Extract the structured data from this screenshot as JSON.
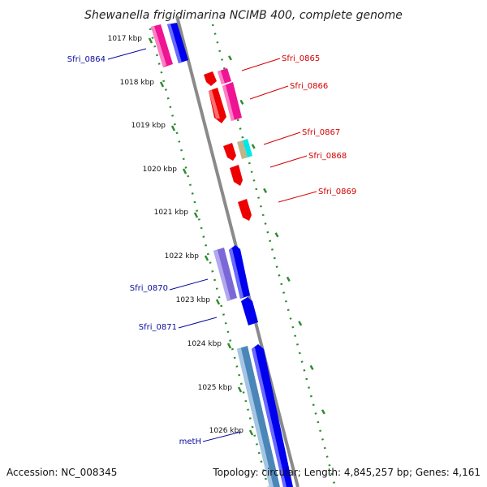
{
  "title": "Shewanella frigidimarina NCIMB 400, complete genome",
  "footer": {
    "accession": "Accession: NC_008345",
    "summary": "Topology: circular; Length: 4,845,257 bp; Genes: 4,161"
  },
  "colors": {
    "backbone": "#8a8a8a",
    "tick_dot": "#2e8b2e",
    "label_blue": "#0a0aa0",
    "label_red": "#d40000",
    "gene_blue": "#0000ee",
    "gene_red": "#ee0000",
    "gene_magenta": "#ee1493",
    "gene_purple": "#7b68d8",
    "gene_steel": "#4a86b8",
    "gene_tan": "#c2b48a",
    "gene_cyan": "#00e8e8"
  },
  "ticks": [
    "1017 kbp",
    "1018 kbp",
    "1019 kbp",
    "1020 kbp",
    "1021 kbp",
    "1022 kbp",
    "1023 kbp",
    "1024 kbp",
    "1025 kbp",
    "1026 kbp"
  ],
  "gene_labels": [
    {
      "text": "Sfri_0864",
      "color": "blue",
      "side": "left"
    },
    {
      "text": "Sfri_0865",
      "color": "red",
      "side": "right"
    },
    {
      "text": "Sfri_0866",
      "color": "red",
      "side": "right"
    },
    {
      "text": "Sfri_0867",
      "color": "red",
      "side": "right"
    },
    {
      "text": "Sfri_0868",
      "color": "red",
      "side": "right"
    },
    {
      "text": "Sfri_0869",
      "color": "red",
      "side": "right"
    },
    {
      "text": "Sfri_0870",
      "color": "blue",
      "side": "left"
    },
    {
      "text": "Sfri_0871",
      "color": "blue",
      "side": "left"
    },
    {
      "text": "metH",
      "color": "blue",
      "side": "left"
    }
  ]
}
